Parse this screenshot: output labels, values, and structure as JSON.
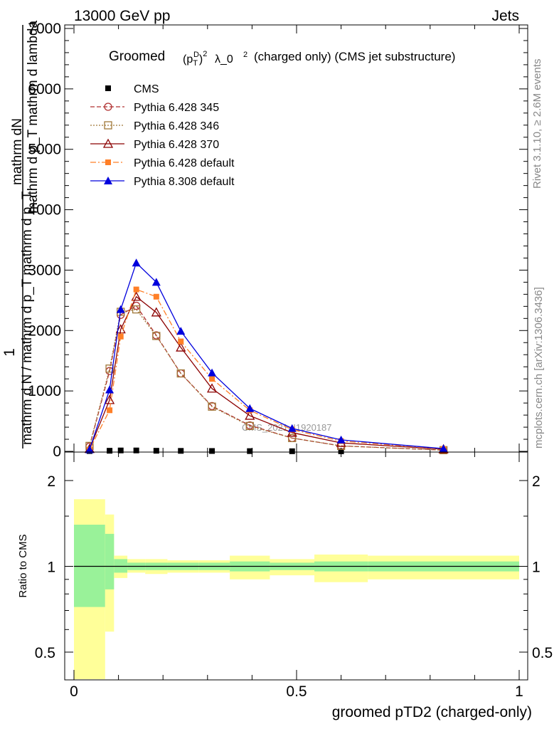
{
  "header": {
    "left": "13000 GeV pp",
    "right": "Jets"
  },
  "side_labels": {
    "rivet": "Rivet 3.1.10, ≥ 2.6M events",
    "mcplots": "mcplots.cern.ch [arXiv:1306.3436]"
  },
  "watermark": "CMS_2021_I1920187",
  "colors": {
    "cms": "#000000",
    "py345": "#b03030",
    "py346": "#a07838",
    "py370": "#8b0000",
    "py_default": "#ff7f27",
    "py8": "#0000dd",
    "band_inner": "#99f299",
    "band_outer": "#ffff99"
  },
  "chart_data": [
    {
      "type": "line",
      "panel": "main",
      "title_main": "Groomed",
      "title_suffix": "λ_0",
      "title_rest": "(charged only) (CMS jet substructure)",
      "ylabel_numerator": "mathrm dN",
      "ylabel_denominator": "mathrm d p_T mathrm d lambda",
      "ylabel_one": "1",
      "ylabel_long": "mathrm d N / mathrm d p_T mathrm d p_T",
      "xlim": [
        0,
        1
      ],
      "ylim": [
        0,
        7000
      ],
      "yticks": [
        0,
        1000,
        2000,
        3000,
        4000,
        5000,
        6000,
        7000
      ],
      "ytick_labels": [
        "0",
        "1000",
        "2000",
        "3000",
        "4000",
        "5000",
        "6000",
        "7000"
      ],
      "legend_position": "top-left",
      "series": [
        {
          "name": "CMS",
          "key": "cms",
          "marker": "square",
          "x": [
            0.035,
            0.08,
            0.105,
            0.14,
            0.185,
            0.24,
            0.31,
            0.395,
            0.49,
            0.6,
            0.83
          ],
          "y": [
            5,
            10,
            15,
            15,
            10,
            8,
            6,
            4,
            2,
            1,
            0
          ]
        },
        {
          "name": "Pythia 6.428 345",
          "key": "py345",
          "marker": "circle-open",
          "dash": "6,3",
          "x": [
            0.035,
            0.08,
            0.105,
            0.14,
            0.185,
            0.24,
            0.31,
            0.395,
            0.49,
            0.6,
            0.83
          ],
          "y": [
            80,
            1330,
            2260,
            2410,
            1920,
            1290,
            750,
            430,
            220,
            90,
            20
          ]
        },
        {
          "name": "Pythia 6.428 346",
          "key": "py346",
          "marker": "square-open",
          "dash": "2,2",
          "x": [
            0.035,
            0.08,
            0.105,
            0.14,
            0.185,
            0.24,
            0.31,
            0.395,
            0.49,
            0.6,
            0.83
          ],
          "y": [
            90,
            1370,
            2310,
            2350,
            1910,
            1290,
            740,
            420,
            220,
            90,
            20
          ]
        },
        {
          "name": "Pythia 6.428 370",
          "key": "py370",
          "marker": "triangle-open",
          "dash": "",
          "x": [
            0.035,
            0.08,
            0.105,
            0.14,
            0.185,
            0.24,
            0.31,
            0.395,
            0.49,
            0.6,
            0.83
          ],
          "y": [
            40,
            850,
            2020,
            2560,
            2300,
            1720,
            1040,
            590,
            310,
            140,
            35
          ]
        },
        {
          "name": "Pythia 6.428 default",
          "key": "py_default",
          "marker": "square",
          "dash": "8,3,2,3",
          "x": [
            0.035,
            0.08,
            0.105,
            0.14,
            0.185,
            0.24,
            0.31,
            0.395,
            0.49,
            0.6,
            0.83
          ],
          "y": [
            30,
            680,
            1900,
            2680,
            2560,
            1820,
            1200,
            680,
            360,
            170,
            40
          ]
        },
        {
          "name": "Pythia 8.308 default",
          "key": "py8",
          "marker": "triangle",
          "dash": "",
          "x": [
            0.035,
            0.08,
            0.105,
            0.14,
            0.185,
            0.24,
            0.31,
            0.395,
            0.49,
            0.6,
            0.83
          ],
          "y": [
            30,
            1020,
            2350,
            3120,
            2800,
            1990,
            1300,
            710,
            380,
            190,
            45
          ]
        }
      ]
    },
    {
      "type": "line",
      "panel": "ratio",
      "ylabel": "Ratio to CMS",
      "xlabel": "groomed pTD2 (charged-only)",
      "xlim": [
        0,
        1
      ],
      "ylim": [
        0.35,
        2.25
      ],
      "xticks": [
        0,
        0.5,
        1
      ],
      "xtick_labels": [
        "0",
        "0.5",
        "1"
      ],
      "yticks": [
        0.5,
        1,
        2
      ],
      "ytick_labels": [
        "0.5",
        "1",
        "2"
      ],
      "reference": 1,
      "bands": {
        "edges": [
          0,
          0.07,
          0.09,
          0.12,
          0.16,
          0.21,
          0.28,
          0.35,
          0.44,
          0.54,
          0.66,
          1.0
        ],
        "inner_lo": [
          0.72,
          0.83,
          0.95,
          0.97,
          0.97,
          0.97,
          0.97,
          0.96,
          0.97,
          0.96,
          0.96
        ],
        "inner_hi": [
          1.4,
          1.3,
          1.06,
          1.03,
          1.03,
          1.03,
          1.03,
          1.04,
          1.03,
          1.04,
          1.04
        ],
        "outer_lo": [
          0.3,
          0.59,
          0.91,
          0.95,
          0.94,
          0.95,
          0.95,
          0.9,
          0.93,
          0.88,
          0.9
        ],
        "outer_hi": [
          1.72,
          1.52,
          1.09,
          1.06,
          1.06,
          1.05,
          1.05,
          1.09,
          1.06,
          1.1,
          1.09
        ]
      }
    }
  ]
}
